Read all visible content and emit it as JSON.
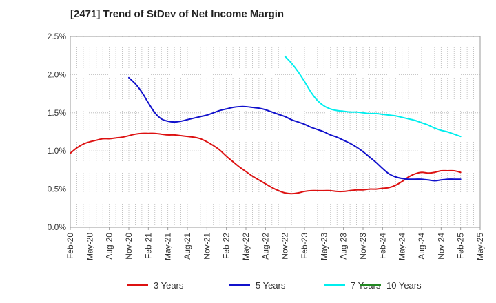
{
  "chart_data": {
    "type": "line",
    "title": "[2471]  Trend of StDev of Net Income Margin",
    "xlabel": "",
    "ylabel": "",
    "x_ticks": [
      "Feb-20",
      "May-20",
      "Aug-20",
      "Nov-20",
      "Feb-21",
      "May-21",
      "Aug-21",
      "Nov-21",
      "Feb-22",
      "May-22",
      "Aug-22",
      "Nov-22",
      "Feb-23",
      "May-23",
      "Aug-23",
      "Nov-23",
      "Feb-24",
      "May-24",
      "Aug-24",
      "Nov-24",
      "Feb-25",
      "May-25"
    ],
    "y_ticks": [
      "0.0%",
      "0.5%",
      "1.0%",
      "1.5%",
      "2.0%",
      "2.5%"
    ],
    "ylim": [
      0,
      2.5
    ],
    "y_unit": "%",
    "grid": true,
    "legend_position": "bottom",
    "series": [
      {
        "name": "3 Years",
        "color": "#dd1111",
        "x": [
          "Feb-20",
          "Mar-20",
          "Apr-20",
          "May-20",
          "Jun-20",
          "Jul-20",
          "Aug-20",
          "Sep-20",
          "Oct-20",
          "Nov-20",
          "Dec-20",
          "Jan-21",
          "Feb-21",
          "Mar-21",
          "Apr-21",
          "May-21",
          "Jun-21",
          "Jul-21",
          "Aug-21",
          "Sep-21",
          "Oct-21",
          "Nov-21",
          "Dec-21",
          "Jan-22",
          "Feb-22",
          "Mar-22",
          "Apr-22",
          "May-22",
          "Jun-22",
          "Jul-22",
          "Aug-22",
          "Sep-22",
          "Oct-22",
          "Nov-22",
          "Dec-22",
          "Jan-23",
          "Feb-23",
          "Mar-23",
          "Apr-23",
          "May-23",
          "Jun-23",
          "Jul-23",
          "Aug-23",
          "Sep-23",
          "Oct-23",
          "Nov-23",
          "Dec-23",
          "Jan-24",
          "Feb-24",
          "Mar-24",
          "Apr-24",
          "May-24",
          "Jun-24",
          "Jul-24",
          "Aug-24",
          "Sep-24",
          "Oct-24",
          "Nov-24",
          "Dec-24",
          "Jan-25",
          "Feb-25"
        ],
        "values": [
          0.97,
          1.04,
          1.09,
          1.12,
          1.14,
          1.16,
          1.16,
          1.17,
          1.18,
          1.2,
          1.22,
          1.23,
          1.23,
          1.23,
          1.22,
          1.21,
          1.21,
          1.2,
          1.19,
          1.18,
          1.16,
          1.12,
          1.07,
          1.01,
          0.93,
          0.86,
          0.79,
          0.73,
          0.67,
          0.62,
          0.57,
          0.52,
          0.48,
          0.45,
          0.44,
          0.45,
          0.47,
          0.48,
          0.48,
          0.48,
          0.48,
          0.47,
          0.47,
          0.48,
          0.49,
          0.49,
          0.5,
          0.5,
          0.51,
          0.52,
          0.55,
          0.6,
          0.66,
          0.7,
          0.72,
          0.71,
          0.72,
          0.74,
          0.74,
          0.74,
          0.72
        ]
      },
      {
        "name": "5 Years",
        "color": "#1111cc",
        "x": [
          "Nov-20",
          "Dec-20",
          "Jan-21",
          "Feb-21",
          "Mar-21",
          "Apr-21",
          "May-21",
          "Jun-21",
          "Jul-21",
          "Aug-21",
          "Sep-21",
          "Oct-21",
          "Nov-21",
          "Dec-21",
          "Jan-22",
          "Feb-22",
          "Mar-22",
          "Apr-22",
          "May-22",
          "Jun-22",
          "Jul-22",
          "Aug-22",
          "Sep-22",
          "Oct-22",
          "Nov-22",
          "Dec-22",
          "Jan-23",
          "Feb-23",
          "Mar-23",
          "Apr-23",
          "May-23",
          "Jun-23",
          "Jul-23",
          "Aug-23",
          "Sep-23",
          "Oct-23",
          "Nov-23",
          "Dec-23",
          "Jan-24",
          "Feb-24",
          "Mar-24",
          "Apr-24",
          "May-24",
          "Jun-24",
          "Jul-24",
          "Aug-24",
          "Sep-24",
          "Oct-24",
          "Nov-24",
          "Dec-24",
          "Jan-25",
          "Feb-25"
        ],
        "values": [
          1.96,
          1.88,
          1.77,
          1.63,
          1.5,
          1.42,
          1.39,
          1.38,
          1.39,
          1.41,
          1.43,
          1.45,
          1.47,
          1.5,
          1.53,
          1.55,
          1.57,
          1.58,
          1.58,
          1.57,
          1.56,
          1.54,
          1.51,
          1.48,
          1.45,
          1.41,
          1.38,
          1.35,
          1.31,
          1.28,
          1.25,
          1.21,
          1.18,
          1.14,
          1.1,
          1.05,
          0.99,
          0.92,
          0.85,
          0.77,
          0.7,
          0.66,
          0.64,
          0.63,
          0.63,
          0.63,
          0.62,
          0.61,
          0.62,
          0.63,
          0.63,
          0.63
        ]
      },
      {
        "name": "7 Years",
        "color": "#00eeee",
        "x": [
          "Nov-22",
          "Dec-22",
          "Jan-23",
          "Feb-23",
          "Mar-23",
          "Apr-23",
          "May-23",
          "Jun-23",
          "Jul-23",
          "Aug-23",
          "Sep-23",
          "Oct-23",
          "Nov-23",
          "Dec-23",
          "Jan-24",
          "Feb-24",
          "Mar-24",
          "Apr-24",
          "May-24",
          "Jun-24",
          "Jul-24",
          "Aug-24",
          "Sep-24",
          "Oct-24",
          "Nov-24",
          "Dec-24",
          "Jan-25",
          "Feb-25"
        ],
        "values": [
          2.24,
          2.15,
          2.04,
          1.91,
          1.77,
          1.66,
          1.59,
          1.55,
          1.53,
          1.52,
          1.51,
          1.51,
          1.5,
          1.49,
          1.49,
          1.48,
          1.47,
          1.46,
          1.44,
          1.42,
          1.4,
          1.37,
          1.34,
          1.3,
          1.27,
          1.25,
          1.22,
          1.19
        ]
      },
      {
        "name": "10 Years",
        "color": "#228822",
        "x": [],
        "values": []
      }
    ]
  }
}
